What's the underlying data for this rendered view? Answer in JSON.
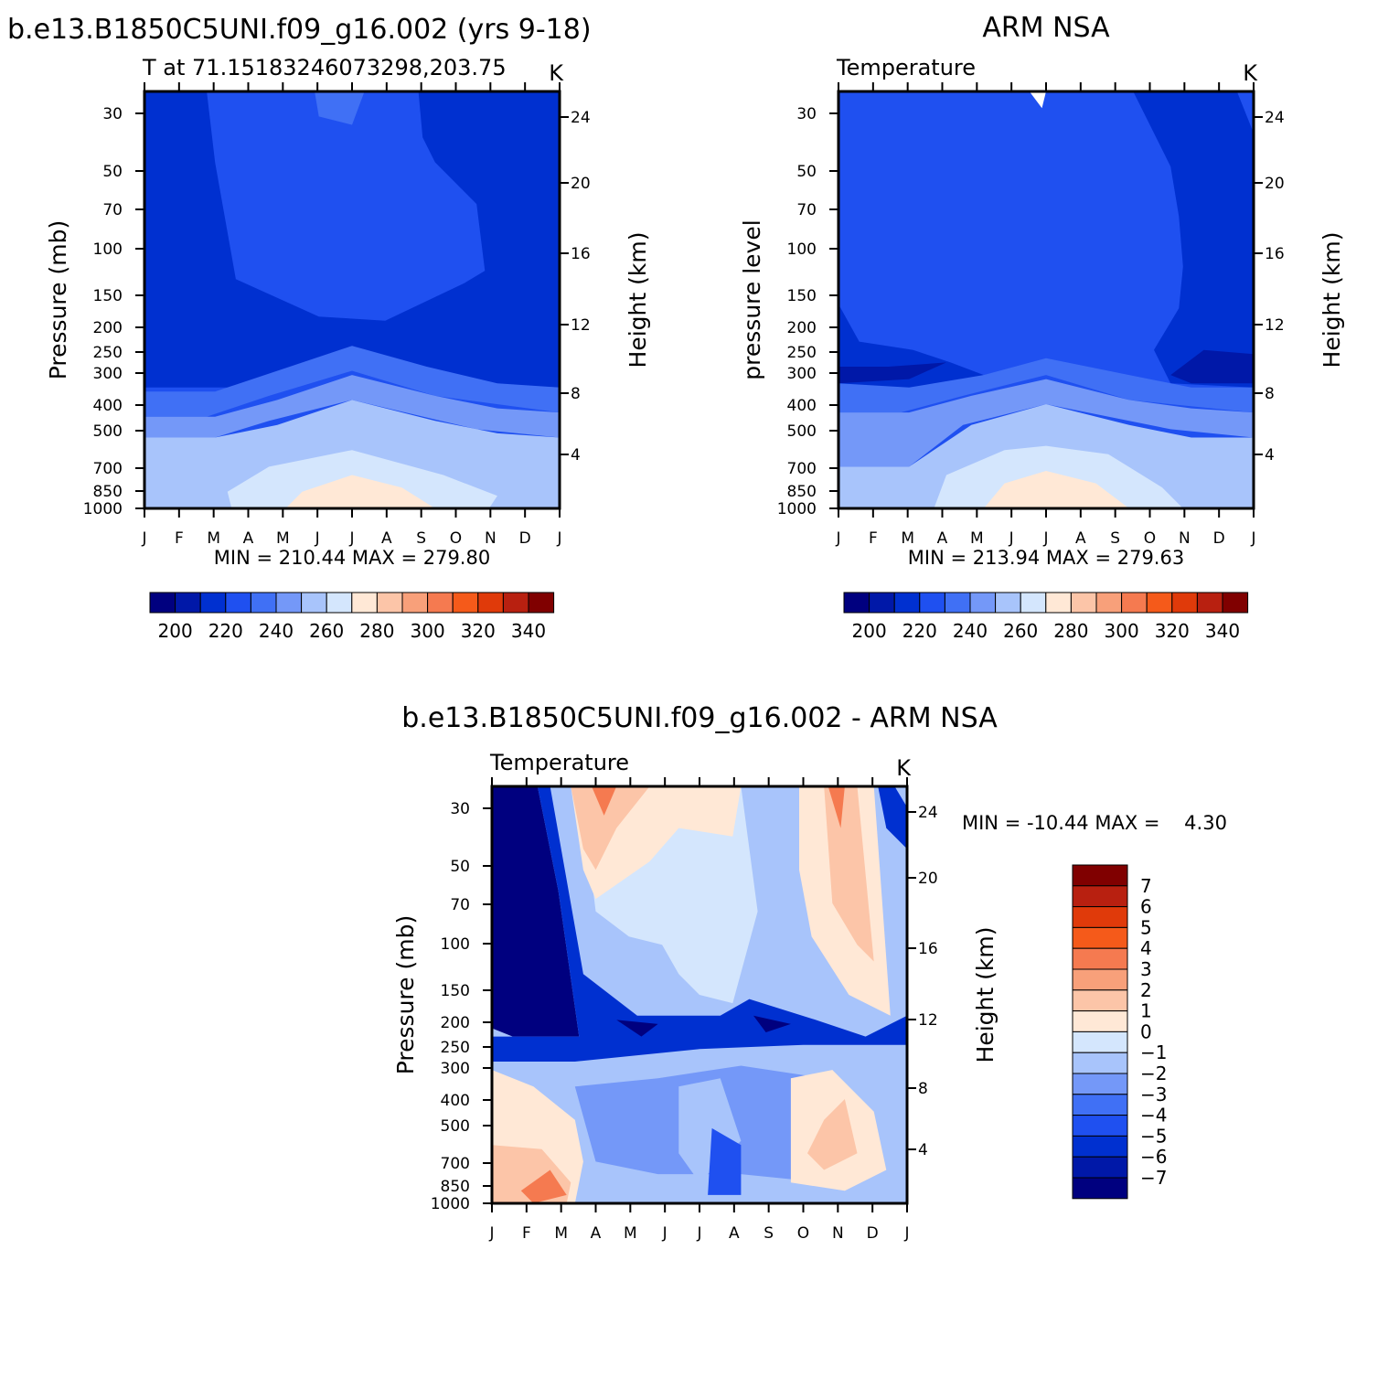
{
  "chart_data": [
    {
      "type": "heatmap",
      "title": "b.e13.B1850C5UNI.f09_g16.002 (yrs 9-18)",
      "subtitle": "T at 71.15183246073298,203.75",
      "units": "K",
      "ylabel": "Pressure (mb)",
      "y2label": "Height (km)",
      "x_ticks": [
        "J",
        "F",
        "M",
        "A",
        "M",
        "J",
        "J",
        "A",
        "S",
        "O",
        "N",
        "D",
        "J"
      ],
      "y_ticks": [
        "30",
        "50",
        "70",
        "100",
        "150",
        "200",
        "250",
        "300",
        "400",
        "500",
        "700",
        "850",
        "1000"
      ],
      "y2_ticks": [
        "24",
        "20",
        "16",
        "12",
        "8",
        "4"
      ],
      "min_max": "MIN = 210.44 MAX = 279.80",
      "colorbar_labels": [
        "200",
        "220",
        "240",
        "260",
        "280",
        "300",
        "320",
        "340"
      ]
    },
    {
      "type": "heatmap",
      "title": "ARM NSA",
      "subtitle": "Temperature",
      "units": "K",
      "ylabel": "pressure level",
      "y2label": "Height (km)",
      "x_ticks": [
        "J",
        "F",
        "M",
        "A",
        "M",
        "J",
        "J",
        "A",
        "S",
        "O",
        "N",
        "D",
        "J"
      ],
      "y_ticks": [
        "30",
        "50",
        "70",
        "100",
        "150",
        "200",
        "250",
        "300",
        "400",
        "500",
        "700",
        "850",
        "1000"
      ],
      "y2_ticks": [
        "24",
        "20",
        "16",
        "12",
        "8",
        "4"
      ],
      "min_max": "MIN = 213.94 MAX = 279.63",
      "colorbar_labels": [
        "200",
        "220",
        "240",
        "260",
        "280",
        "300",
        "320",
        "340"
      ]
    },
    {
      "type": "heatmap",
      "title": "b.e13.B1850C5UNI.f09_g16.002 - ARM NSA",
      "subtitle": "Temperature",
      "units": "K",
      "ylabel": "Pressure (mb)",
      "y2label": "Height (km)",
      "x_ticks": [
        "J",
        "F",
        "M",
        "A",
        "M",
        "J",
        "J",
        "A",
        "S",
        "O",
        "N",
        "D",
        "J"
      ],
      "y_ticks": [
        "30",
        "50",
        "70",
        "100",
        "150",
        "200",
        "250",
        "300",
        "400",
        "500",
        "700",
        "850",
        "1000"
      ],
      "y2_ticks": [
        "24",
        "20",
        "16",
        "12",
        "8",
        "4"
      ],
      "min_max": "MIN = -10.44 MAX =    4.30",
      "colorbar_labels": [
        "7",
        "6",
        "5",
        "4",
        "3",
        "2",
        "1",
        "0",
        "-1",
        "-2",
        "-3",
        "-4",
        "-5",
        "-6",
        "-7"
      ]
    }
  ],
  "colors": {
    "temp_scale": [
      "#00007f",
      "#0018a8",
      "#0030d0",
      "#1f50f0",
      "#4070f5",
      "#7498f8",
      "#a8c4fb",
      "#d4e6fd",
      "#ffe8d6",
      "#fcc5a8",
      "#f8a07a",
      "#f57a50",
      "#f55a1a",
      "#e03a0a",
      "#b82010",
      "#800000"
    ],
    "diff_scale": [
      "#800000",
      "#b82010",
      "#e03a0a",
      "#f55a1a",
      "#f57a50",
      "#f8a07a",
      "#fcc5a8",
      "#ffe8d6",
      "#d4e6fd",
      "#a8c4fb",
      "#7498f8",
      "#4070f5",
      "#1f50f0",
      "#0030d0",
      "#0018a8",
      "#00007f"
    ]
  }
}
